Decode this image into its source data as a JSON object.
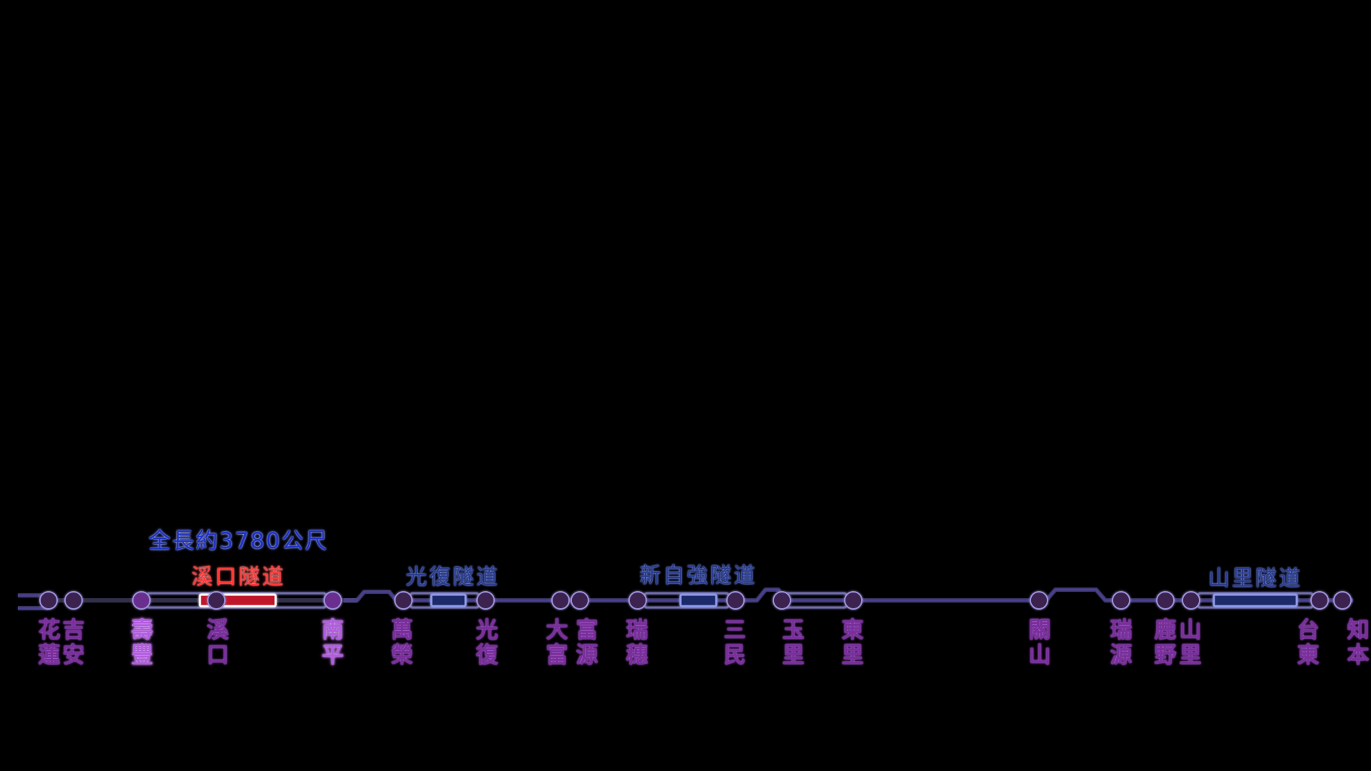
{
  "colors": {
    "background": "#000000",
    "track": "#4a3f8f",
    "track_glow": "#8e88d8",
    "station": "#3a2150",
    "station_highlight": "#6b2f8f",
    "tunnel": "#1b2a6b",
    "tunnel_active": "#c0122a",
    "station_label": "#7a2f9a",
    "tunnel_label": "#2a3c8e",
    "tunnel_label_active": "#ff3a3a",
    "length_label": "#1e33c8"
  },
  "length_label": "全長約3780公尺",
  "tunnels": [
    {
      "name": "溪口隧道",
      "active": true
    },
    {
      "name": "光復隧道",
      "active": false
    },
    {
      "name": "新自強隧道",
      "active": false
    },
    {
      "name": "山里隧道",
      "active": false
    }
  ],
  "stations": [
    {
      "name": "花蓮",
      "highlight": false
    },
    {
      "name": "吉安",
      "highlight": false
    },
    {
      "name": "壽豐",
      "highlight": true
    },
    {
      "name": "溪口",
      "highlight": false
    },
    {
      "name": "南平",
      "highlight": true
    },
    {
      "name": "萬榮",
      "highlight": false
    },
    {
      "name": "光復",
      "highlight": false
    },
    {
      "name": "大富",
      "highlight": false
    },
    {
      "name": "富源",
      "highlight": false
    },
    {
      "name": "瑞穗",
      "highlight": false
    },
    {
      "name": "三民",
      "highlight": false
    },
    {
      "name": "玉里",
      "highlight": false
    },
    {
      "name": "東里",
      "highlight": false
    },
    {
      "name": "關山",
      "highlight": false
    },
    {
      "name": "瑞源",
      "highlight": false
    },
    {
      "name": "鹿野",
      "highlight": false
    },
    {
      "name": "山里",
      "highlight": false
    },
    {
      "name": "台東",
      "highlight": false
    },
    {
      "name": "知本",
      "highlight": false
    }
  ]
}
